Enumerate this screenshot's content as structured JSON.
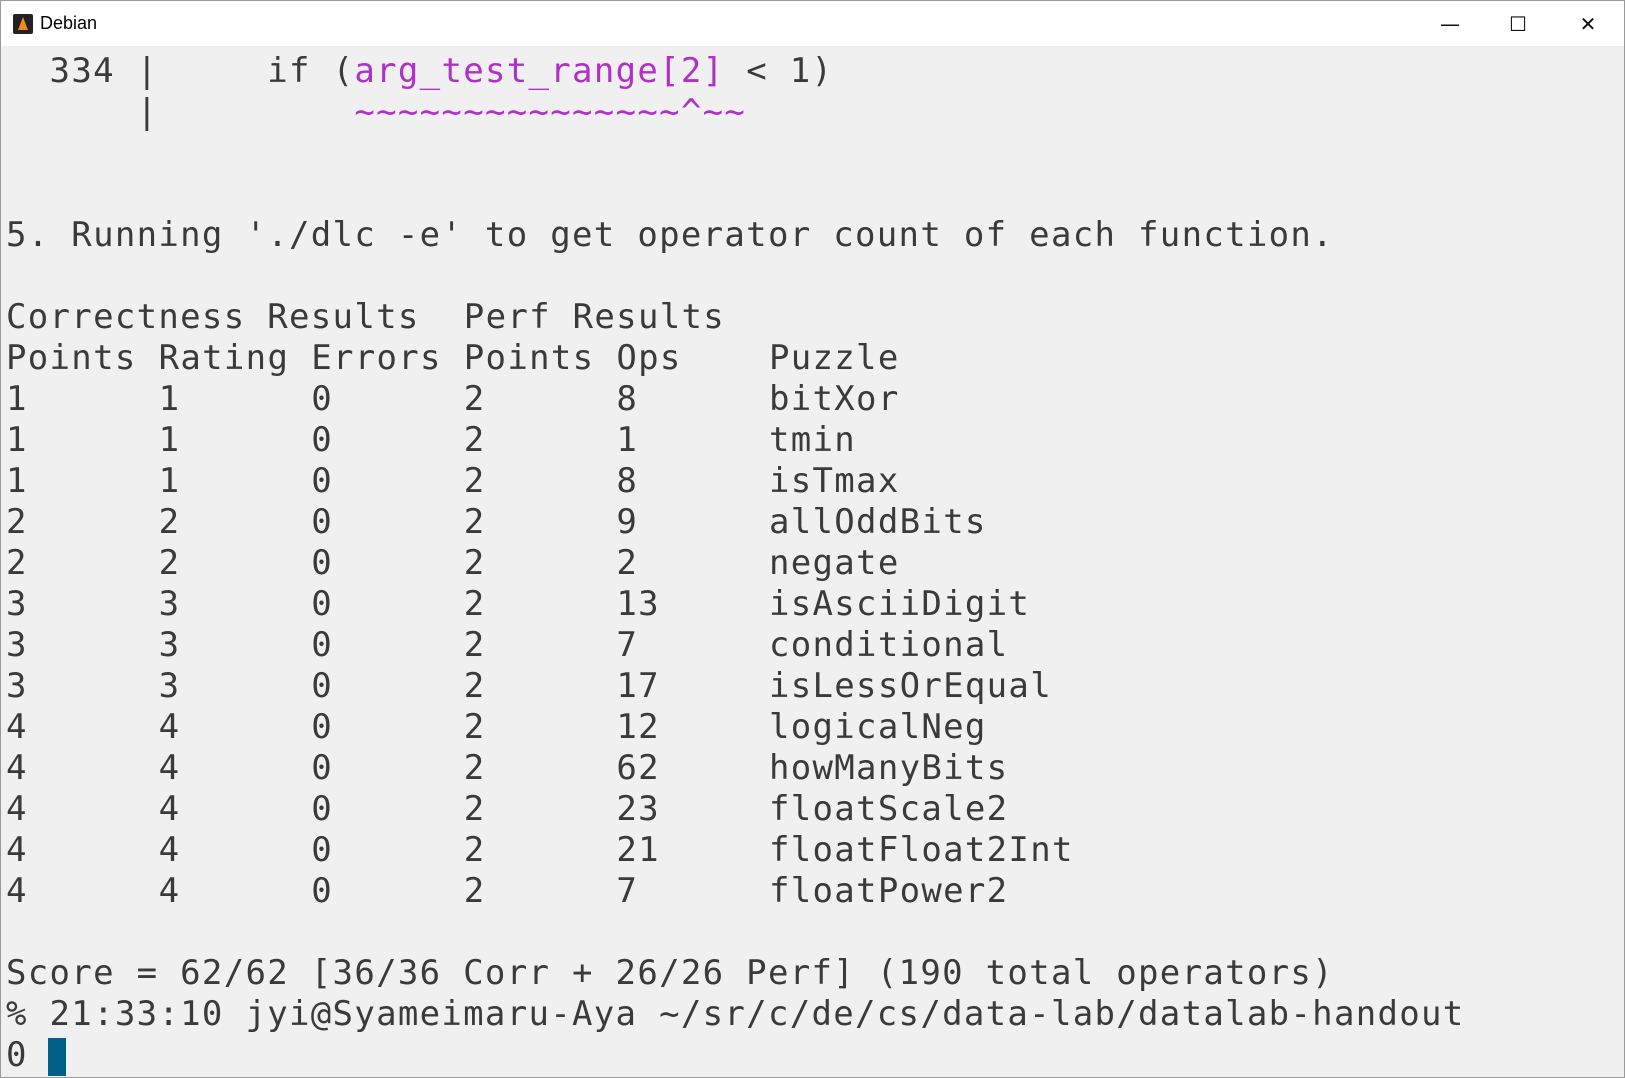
{
  "window": {
    "title": "Debian",
    "minimize": "—",
    "maximize": "☐",
    "close": "✕"
  },
  "code": {
    "line_no": "334",
    "pipe": "|",
    "prefix": "     if (",
    "highlight": "arg_test_range[2]",
    "suffix": " < 1)",
    "marker": "~~~~~~~~~~~~~~~^~~"
  },
  "step": "5. Running './dlc -e' to get operator count of each function.",
  "table": {
    "group_headers": [
      "Correctness Results",
      "Perf Results"
    ],
    "columns": [
      "Points",
      "Rating",
      "Errors",
      "Points",
      "Ops",
      "Puzzle"
    ],
    "rows": [
      [
        "1",
        "1",
        "0",
        "2",
        "8",
        "bitXor"
      ],
      [
        "1",
        "1",
        "0",
        "2",
        "1",
        "tmin"
      ],
      [
        "1",
        "1",
        "0",
        "2",
        "8",
        "isTmax"
      ],
      [
        "2",
        "2",
        "0",
        "2",
        "9",
        "allOddBits"
      ],
      [
        "2",
        "2",
        "0",
        "2",
        "2",
        "negate"
      ],
      [
        "3",
        "3",
        "0",
        "2",
        "13",
        "isAsciiDigit"
      ],
      [
        "3",
        "3",
        "0",
        "2",
        "7",
        "conditional"
      ],
      [
        "3",
        "3",
        "0",
        "2",
        "17",
        "isLessOrEqual"
      ],
      [
        "4",
        "4",
        "0",
        "2",
        "12",
        "logicalNeg"
      ],
      [
        "4",
        "4",
        "0",
        "2",
        "62",
        "howManyBits"
      ],
      [
        "4",
        "4",
        "0",
        "2",
        "23",
        "floatScale2"
      ],
      [
        "4",
        "4",
        "0",
        "2",
        "21",
        "floatFloat2Int"
      ],
      [
        "4",
        "4",
        "0",
        "2",
        "7",
        "floatPower2"
      ]
    ]
  },
  "score": "Score = 62/62 [36/36 Corr + 26/26 Perf] (190 total operators)",
  "prompt": "% 21:33:10 jyi@Syameimaru-Aya ~/sr/c/de/cs/data-lab/datalab-handout",
  "exit_code": "0",
  "colors": {
    "highlight": "#b030c8",
    "cursor": "#005f87",
    "text": "#3a3a3a",
    "background": "#f0f0f0"
  }
}
